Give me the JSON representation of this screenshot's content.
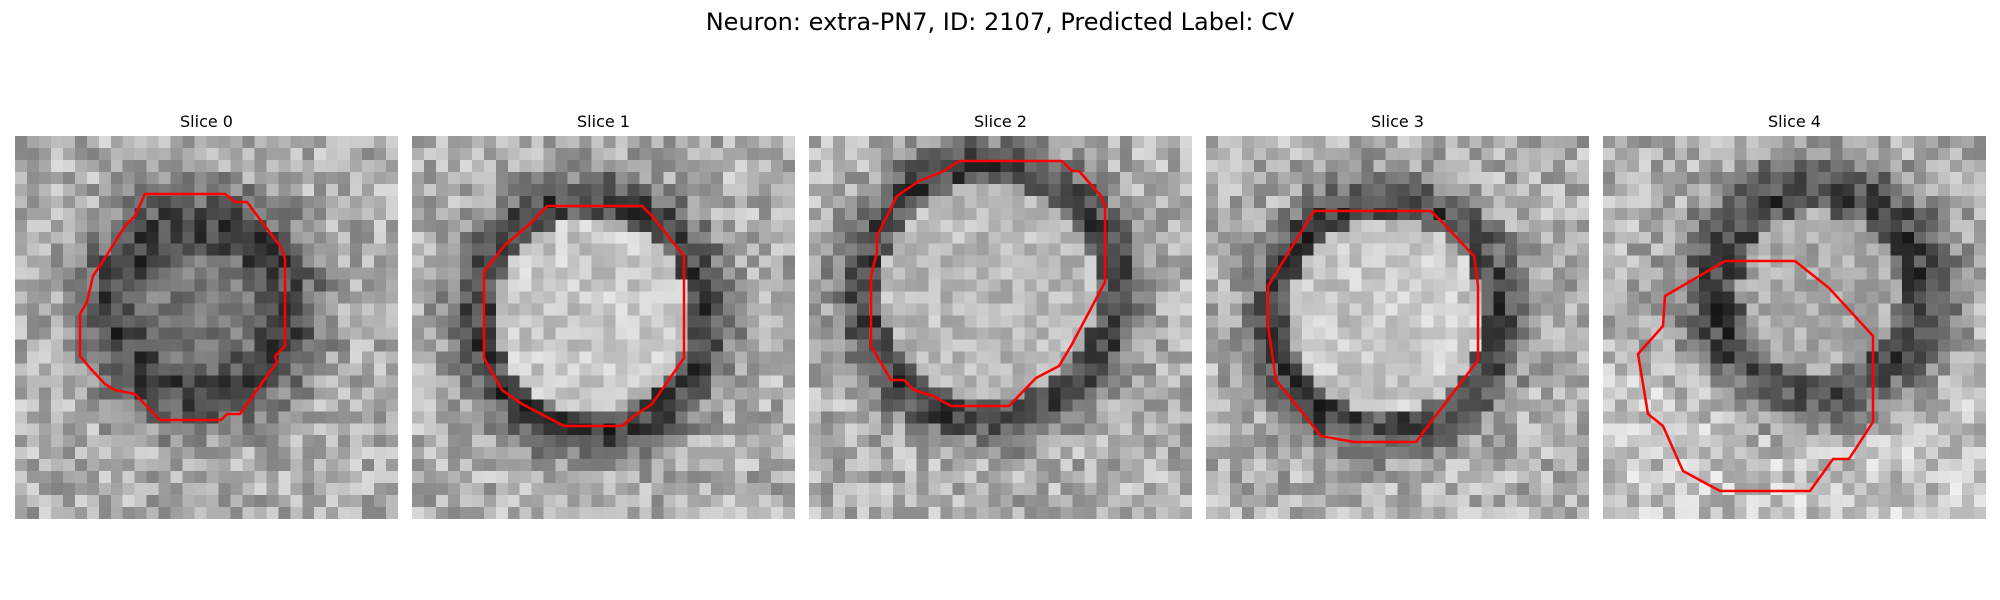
{
  "figure": {
    "title": "Neuron: extra-PN7, ID: 2107, Predicted Label: CV",
    "contour_color": "#ff0000",
    "colormap": "gray"
  },
  "slices": [
    {
      "title": "Slice 0"
    },
    {
      "title": "Slice 1"
    },
    {
      "title": "Slice 2"
    },
    {
      "title": "Slice 3"
    },
    {
      "title": "Slice 4"
    }
  ]
}
